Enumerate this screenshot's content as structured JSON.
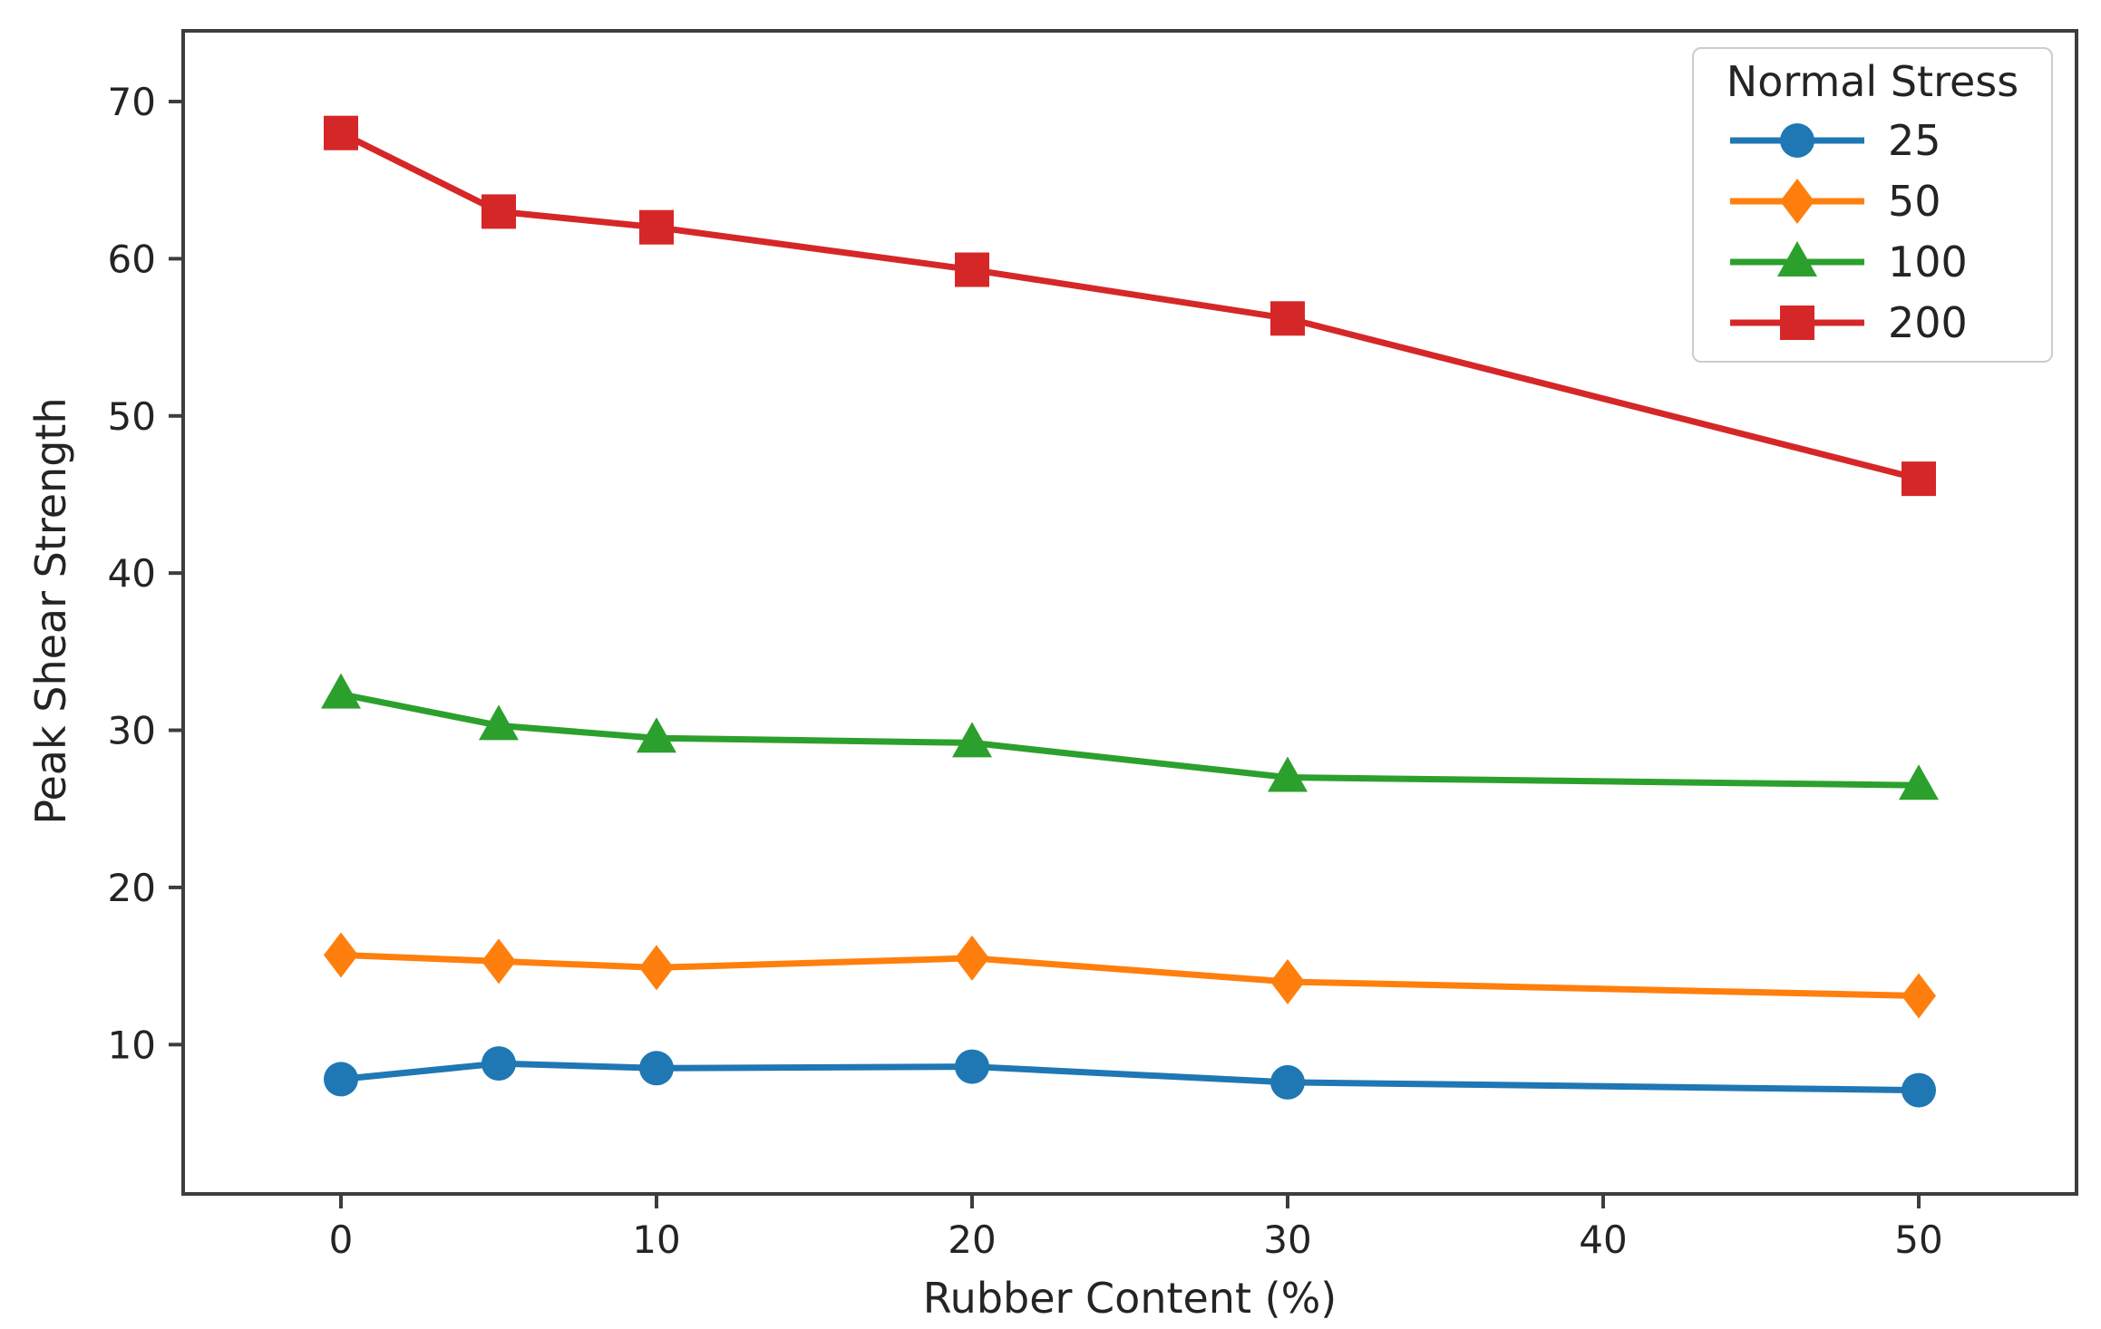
{
  "figure": {
    "background": "#ffffff",
    "frame_color": "#3d3d3d",
    "text_color": "#242424",
    "legend_border_color": "#cccccc"
  },
  "chart_data": {
    "type": "line",
    "title": "",
    "xlabel": "Rubber Content (%)",
    "ylabel": "Peak Shear Strength",
    "x": [
      0,
      5,
      10,
      20,
      30,
      50
    ],
    "series": [
      {
        "name": "25",
        "color": "#1f77b4",
        "marker": "circle",
        "values": [
          7.8,
          8.8,
          8.5,
          8.6,
          7.6,
          7.1
        ]
      },
      {
        "name": "50",
        "color": "#ff7f0e",
        "marker": "diamond",
        "values": [
          15.7,
          15.3,
          14.9,
          15.5,
          14.0,
          13.1
        ]
      },
      {
        "name": "100",
        "color": "#2ca02c",
        "marker": "triangle",
        "values": [
          32.3,
          30.3,
          29.5,
          29.2,
          27.0,
          26.5
        ]
      },
      {
        "name": "200",
        "color": "#d62728",
        "marker": "square",
        "values": [
          68.0,
          63.0,
          62.0,
          59.3,
          56.2,
          46.0
        ]
      }
    ],
    "x_ticks": [
      0,
      10,
      20,
      30,
      40,
      50
    ],
    "y_ticks": [
      10,
      20,
      30,
      40,
      50,
      60,
      70
    ],
    "xlim": [
      -5,
      55
    ],
    "ylim": [
      0.5,
      74.5
    ],
    "grid": false,
    "legend": {
      "title": "Normal Stress",
      "position": "top-right"
    }
  }
}
